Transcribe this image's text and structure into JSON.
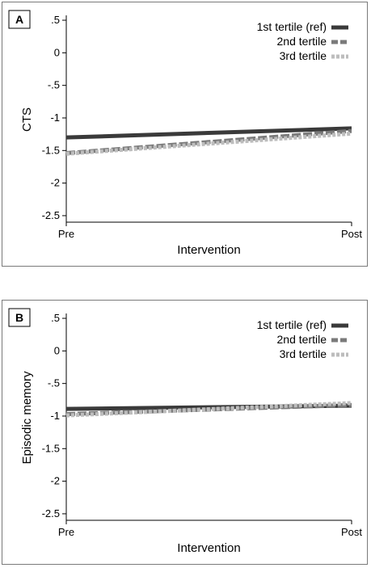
{
  "chart_data": [
    {
      "type": "line",
      "panel_label": "A",
      "xlabel": "Intervention",
      "ylabel": "CTS",
      "categories": [
        "Pre",
        "Post"
      ],
      "yticks": [
        ".5",
        "0",
        "-.5",
        "-1",
        "-1.5",
        "-2",
        "-2.5"
      ],
      "ylim": [
        -2.6,
        0.55
      ],
      "grid": false,
      "legend_position": "top-right",
      "series": [
        {
          "name": "1st tertile (ref)",
          "values": [
            -1.3,
            -1.16
          ],
          "color": "#3a3a3a",
          "style": "solid"
        },
        {
          "name": "2nd tertile",
          "values": [
            -1.54,
            -1.2
          ],
          "color": "#7a7a7a",
          "style": "dashed"
        },
        {
          "name": "3rd tertile",
          "values": [
            -1.55,
            -1.24
          ],
          "color": "#bdbdbd",
          "style": "dotted"
        }
      ]
    },
    {
      "type": "line",
      "panel_label": "B",
      "xlabel": "Intervention",
      "ylabel": "Episodic memory",
      "categories": [
        "Pre",
        "Post"
      ],
      "yticks": [
        ".5",
        "0",
        "-.5",
        "-1",
        "-1.5",
        "-2",
        "-2.5"
      ],
      "ylim": [
        -2.6,
        0.55
      ],
      "grid": false,
      "legend_position": "top-right",
      "series": [
        {
          "name": "1st tertile (ref)",
          "values": [
            -0.89,
            -0.84
          ],
          "color": "#3a3a3a",
          "style": "solid"
        },
        {
          "name": "2nd tertile",
          "values": [
            -0.97,
            -0.83
          ],
          "color": "#7a7a7a",
          "style": "dashed"
        },
        {
          "name": "3rd tertile",
          "values": [
            -0.99,
            -0.8
          ],
          "color": "#bdbdbd",
          "style": "dotted"
        }
      ]
    }
  ]
}
